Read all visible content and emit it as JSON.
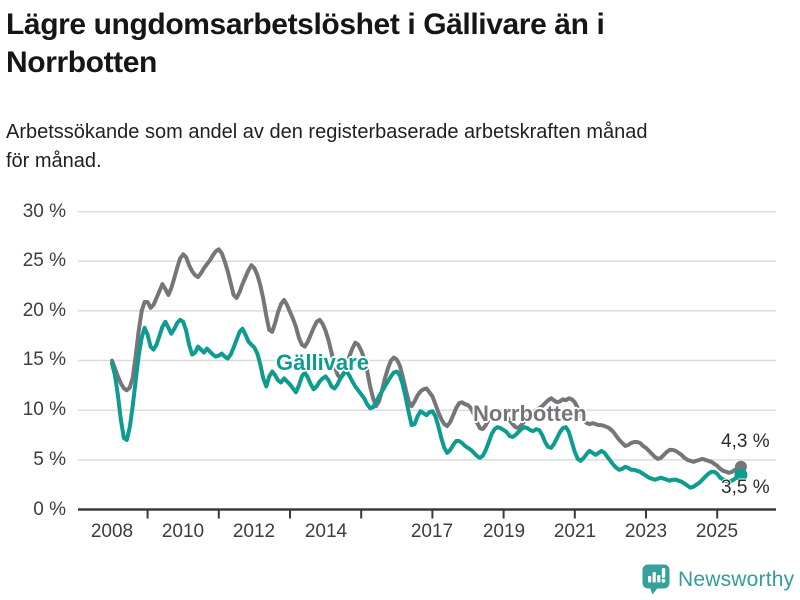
{
  "chart_data": {
    "type": "line",
    "title": "Lägre ungdomsarbetslöshet i Gällivare än i Norrbotten",
    "title_lines": [
      "Lägre ungdomsarbetslöshet i Gällivare än i",
      "Norrbotten"
    ],
    "subtitle": "Arbetssökande som andel av den registerbaserade arbetskraften månad för månad.",
    "subtitle_lines": [
      "Arbetssökande som andel av den registerbaserade arbetskraften månad",
      "för månad."
    ],
    "frequency": "monthly",
    "x_start": "2008-01",
    "x_end": "2025-09",
    "ylim": [
      0,
      30
    ],
    "grid": "horizontal",
    "y_ticks": [
      0,
      5,
      10,
      15,
      20,
      25,
      30
    ],
    "y_tick_labels": [
      "0 %",
      "5 %",
      "10 %",
      "15 %",
      "20 %",
      "25 %",
      "30 %"
    ],
    "x_tick_labels": [
      "2008",
      "2010",
      "2012",
      "2014",
      "2017",
      "2019",
      "2021",
      "2023",
      "2025"
    ],
    "x_tick_label_years": [
      2008,
      2010,
      2012,
      2014,
      2017,
      2019,
      2021,
      2023,
      2025
    ],
    "x_tick_mark_years": [
      2009,
      2011,
      2013,
      2015,
      2017,
      2019,
      2021,
      2023,
      2025
    ],
    "colors": {
      "gallivare": "#0d9c8f",
      "norrbotten": "#76767a",
      "gridline": "#dbdbdb",
      "axis": "#3a3a3a",
      "text": "#3d3d3d"
    },
    "series": [
      {
        "name": "Norrbotten",
        "color": "#76767a",
        "end_label": "4,3 %",
        "end_value": 4.3,
        "values": [
          15.0,
          14.2,
          13.4,
          12.7,
          12.2,
          12.0,
          12.3,
          13.3,
          15.5,
          18.0,
          20.0,
          20.9,
          20.9,
          20.3,
          20.6,
          21.3,
          22.0,
          22.7,
          22.2,
          21.6,
          22.3,
          23.3,
          24.4,
          25.3,
          25.7,
          25.4,
          24.6,
          24.0,
          23.6,
          23.4,
          23.8,
          24.3,
          24.7,
          25.1,
          25.6,
          26.0,
          26.2,
          25.8,
          25.0,
          24.0,
          22.8,
          21.6,
          21.3,
          21.9,
          22.7,
          23.4,
          24.1,
          24.6,
          24.3,
          23.6,
          22.6,
          21.2,
          19.5,
          18.1,
          17.9,
          18.8,
          19.9,
          20.7,
          21.1,
          20.6,
          19.9,
          19.2,
          18.4,
          17.3,
          16.6,
          16.4,
          16.9,
          17.6,
          18.3,
          18.9,
          19.1,
          18.7,
          18.0,
          17.0,
          15.8,
          14.5,
          13.6,
          13.2,
          13.6,
          14.4,
          15.4,
          16.2,
          16.8,
          16.6,
          16.0,
          15.2,
          14.0,
          12.4,
          11.2,
          10.4,
          10.9,
          12.0,
          13.2,
          14.2,
          15.0,
          15.3,
          15.1,
          14.5,
          13.4,
          12.1,
          10.9,
          10.4,
          10.9,
          11.5,
          11.9,
          12.1,
          12.2,
          11.8,
          11.4,
          10.6,
          9.8,
          9.1,
          8.6,
          8.4,
          8.8,
          9.5,
          10.2,
          10.7,
          10.8,
          10.6,
          10.5,
          10.2,
          9.6,
          8.8,
          8.2,
          8.1,
          8.5,
          9.1,
          9.6,
          9.9,
          10.0,
          9.9,
          9.7,
          9.4,
          9.0,
          8.6,
          8.3,
          8.2,
          8.5,
          8.9,
          9.3,
          9.6,
          9.8,
          10.0,
          10.2,
          10.4,
          10.7,
          11.0,
          11.2,
          11.0,
          10.8,
          10.9,
          11.1,
          11.0,
          11.2,
          11.1,
          10.8,
          10.2,
          9.5,
          9.0,
          8.7,
          8.6,
          8.7,
          8.6,
          8.5,
          8.5,
          8.4,
          8.3,
          8.1,
          7.8,
          7.4,
          7.0,
          6.7,
          6.4,
          6.5,
          6.7,
          6.8,
          6.8,
          6.7,
          6.4,
          6.2,
          5.9,
          5.6,
          5.3,
          5.1,
          5.2,
          5.5,
          5.8,
          6.0,
          6.0,
          5.9,
          5.7,
          5.5,
          5.2,
          5.0,
          4.9,
          4.8,
          4.9,
          5.0,
          5.1,
          5.0,
          4.9,
          4.8,
          4.6,
          4.4,
          4.1,
          3.9,
          3.8,
          3.7,
          3.8,
          4.0,
          4.2,
          4.3
        ]
      },
      {
        "name": "Gällivare",
        "color": "#0d9c8f",
        "end_label": "3,5 %",
        "end_value": 3.5,
        "values": [
          14.7,
          13.5,
          11.5,
          9.0,
          7.2,
          7.0,
          8.3,
          10.5,
          13.0,
          15.5,
          17.3,
          18.3,
          17.6,
          16.4,
          16.1,
          16.6,
          17.5,
          18.4,
          18.9,
          18.3,
          17.7,
          18.2,
          18.8,
          19.1,
          18.9,
          18.0,
          16.6,
          15.6,
          15.8,
          16.4,
          16.1,
          15.8,
          16.2,
          15.9,
          15.6,
          15.4,
          15.5,
          15.7,
          15.4,
          15.2,
          15.6,
          16.3,
          17.1,
          17.9,
          18.2,
          17.6,
          16.9,
          16.6,
          16.3,
          15.7,
          14.6,
          13.2,
          12.4,
          13.4,
          13.9,
          13.5,
          13.0,
          12.8,
          13.2,
          12.9,
          12.6,
          12.2,
          11.8,
          12.5,
          13.4,
          13.8,
          13.3,
          12.6,
          12.1,
          12.4,
          12.9,
          13.2,
          13.4,
          13.0,
          12.4,
          12.2,
          12.6,
          13.2,
          13.7,
          13.9,
          13.5,
          12.9,
          12.4,
          12.0,
          11.6,
          11.2,
          10.6,
          10.2,
          10.3,
          10.8,
          11.4,
          11.9,
          12.4,
          12.9,
          13.4,
          13.8,
          13.9,
          13.5,
          12.6,
          11.3,
          9.8,
          8.5,
          8.6,
          9.4,
          9.9,
          9.7,
          9.5,
          9.8,
          9.9,
          9.4,
          8.4,
          7.2,
          6.2,
          5.7,
          6.0,
          6.5,
          6.9,
          6.9,
          6.7,
          6.4,
          6.2,
          6.0,
          5.7,
          5.4,
          5.2,
          5.4,
          6.0,
          6.8,
          7.6,
          8.1,
          8.3,
          8.2,
          8.0,
          7.8,
          7.4,
          7.3,
          7.5,
          7.8,
          8.1,
          8.3,
          8.2,
          8.0,
          7.9,
          8.1,
          8.0,
          7.5,
          6.8,
          6.3,
          6.2,
          6.6,
          7.2,
          7.8,
          8.2,
          8.3,
          7.8,
          6.8,
          5.8,
          5.1,
          4.9,
          5.2,
          5.6,
          5.9,
          5.7,
          5.5,
          5.7,
          5.9,
          5.7,
          5.3,
          4.9,
          4.5,
          4.2,
          4.0,
          4.1,
          4.3,
          4.2,
          4.0,
          4.0,
          3.9,
          3.8,
          3.6,
          3.4,
          3.2,
          3.1,
          3.0,
          3.1,
          3.2,
          3.1,
          3.0,
          2.9,
          3.0,
          3.0,
          2.9,
          2.8,
          2.6,
          2.4,
          2.2,
          2.3,
          2.5,
          2.7,
          3.0,
          3.3,
          3.6,
          3.8,
          3.8,
          3.6,
          3.2,
          3.0,
          2.9,
          2.8,
          2.9,
          3.1,
          3.3,
          3.5
        ]
      }
    ]
  },
  "footer": {
    "brand": "Newsworthy"
  }
}
